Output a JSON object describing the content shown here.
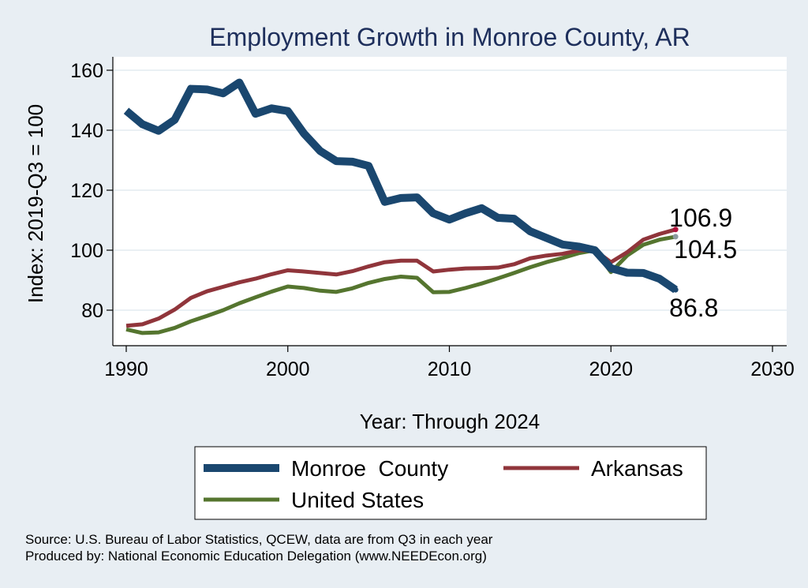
{
  "chart_data": {
    "type": "line",
    "title": "Employment Growth in Monroe County, AR",
    "xlabel": "Year: Through 2024",
    "ylabel": "Index: 2019-Q3 = 100",
    "xlim": [
      1990,
      2030
    ],
    "ylim": [
      70,
      162
    ],
    "xticks": [
      1990,
      2000,
      2010,
      2020,
      2030
    ],
    "yticks": [
      80,
      100,
      120,
      140,
      160
    ],
    "grid": true,
    "legend_position": "bottom",
    "x": [
      1990,
      1991,
      1992,
      1993,
      1994,
      1995,
      1996,
      1997,
      1998,
      1999,
      2000,
      2001,
      2002,
      2003,
      2004,
      2005,
      2006,
      2007,
      2008,
      2009,
      2010,
      2011,
      2012,
      2013,
      2014,
      2015,
      2016,
      2017,
      2018,
      2019,
      2020,
      2021,
      2022,
      2023,
      2024
    ],
    "series": [
      {
        "name": "Monroe  County",
        "color": "#1a476f",
        "end_label": "86.8",
        "values": [
          146.5,
          142.0,
          139.8,
          143.5,
          153.8,
          153.6,
          152.3,
          155.9,
          145.5,
          147.3,
          146.4,
          138.9,
          133.1,
          129.7,
          129.5,
          128.1,
          116.1,
          117.4,
          117.6,
          112.3,
          110.2,
          112.3,
          114.0,
          110.8,
          110.5,
          106.3,
          104.1,
          101.9,
          101.2,
          100.0,
          94.0,
          92.5,
          92.4,
          90.5,
          86.8
        ]
      },
      {
        "name": "Arkansas",
        "color": "#90353b",
        "end_label": "106.9",
        "values": [
          74.8,
          75.3,
          77.2,
          80.2,
          84.1,
          86.3,
          87.8,
          89.3,
          90.5,
          92.0,
          93.3,
          92.9,
          92.4,
          91.9,
          93.0,
          94.6,
          96.0,
          96.5,
          96.5,
          92.9,
          93.5,
          93.9,
          94.0,
          94.2,
          95.3,
          97.3,
          98.2,
          98.8,
          99.9,
          100.0,
          96.0,
          99.3,
          103.5,
          105.4,
          106.9
        ]
      },
      {
        "name": "United States",
        "color": "#55752f",
        "end_label": "104.5",
        "values": [
          73.6,
          72.4,
          72.6,
          74.1,
          76.3,
          78.1,
          80.0,
          82.3,
          84.3,
          86.2,
          87.9,
          87.4,
          86.5,
          86.1,
          87.3,
          89.1,
          90.4,
          91.2,
          90.8,
          86.0,
          86.1,
          87.4,
          88.9,
          90.6,
          92.4,
          94.3,
          96.0,
          97.4,
          99.0,
          100.0,
          92.7,
          98.2,
          101.8,
          103.5,
          104.5
        ]
      }
    ]
  },
  "footnotes": {
    "source": "Source: U.S. Bureau of Labor Statistics, QCEW, data are from Q3 in each year",
    "produced": "Produced by: National Economic Education Delegation (www.NEEDEcon.org)"
  },
  "colors": {
    "page_background": "#e8eef3",
    "plot_background": "#ffffff",
    "grid": "#e4ecf1",
    "title": "#1e2f5c"
  }
}
